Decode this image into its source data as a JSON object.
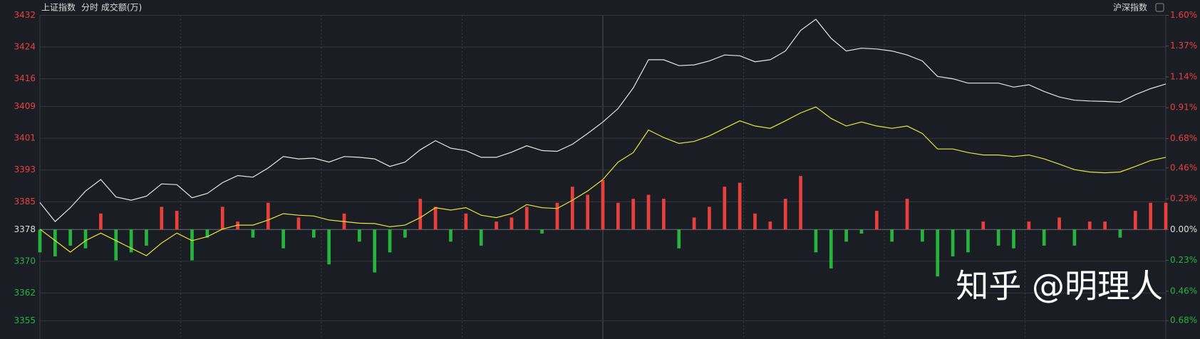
{
  "chart_data": {
    "type": "line",
    "title": "上证指数",
    "subtitle": "分时 成交额(万)",
    "tab_label": "沪深指数",
    "watermark": "知乎 @明理人",
    "grid": true,
    "ylim": [
      3350.4,
      3432
    ],
    "yticks": [
      3432,
      3424,
      3416,
      3409,
      3401,
      3393,
      3385,
      3378,
      3370,
      3362,
      3355
    ],
    "y2lim": [
      -0.817,
      1.6
    ],
    "y2ticks": [
      {
        "value": 1.6,
        "label": "1.60%"
      },
      {
        "value": 1.37,
        "label": "1.37%"
      },
      {
        "value": 1.14,
        "label": "1.14%"
      },
      {
        "value": 0.91,
        "label": "0.91%"
      },
      {
        "value": 0.68,
        "label": "0.68%"
      },
      {
        "value": 0.46,
        "label": "0.46%"
      },
      {
        "value": 0.23,
        "label": "0.23%"
      },
      {
        "value": 0,
        "label": "0.00%"
      },
      {
        "value": -0.23,
        "label": "0.23%"
      },
      {
        "value": -0.46,
        "label": "0.46%"
      },
      {
        "value": -0.68,
        "label": "0.68%"
      }
    ],
    "up_color": "#e8403a",
    "down_color": "#25b53c",
    "series": [
      {
        "type": "line",
        "color": "#e6e6e6",
        "values": [
          3384.8,
          3380.0,
          3383.5,
          3387.7,
          3390.6,
          3386.2,
          3385.4,
          3386.4,
          3389.5,
          3389.3,
          3386.0,
          3387.1,
          3389.8,
          3391.6,
          3391.2,
          3393.5,
          3396.4,
          3395.8,
          3396.0,
          3395.0,
          3396.4,
          3396.2,
          3395.8,
          3393.9,
          3395.0,
          3398.1,
          3400.4,
          3398.5,
          3397.9,
          3396.2,
          3396.2,
          3397.5,
          3399.1,
          3397.9,
          3397.7,
          3399.5,
          3402.2,
          3405.1,
          3408.5,
          3413.7,
          3420.8,
          3420.8,
          3419.3,
          3419.5,
          3420.5,
          3422.0,
          3421.8,
          3420.3,
          3420.8,
          3423.0,
          3428.2,
          3431.0,
          3426.2,
          3423.0,
          3423.7,
          3423.5,
          3423.0,
          3422.0,
          3420.5,
          3416.6,
          3416.0,
          3414.9,
          3414.9,
          3414.9,
          3413.9,
          3414.5,
          3412.8,
          3411.4,
          3410.6,
          3410.4,
          3410.3,
          3410.1,
          3412.0,
          3413.5,
          3414.7
        ]
      },
      {
        "type": "line",
        "color": "#e8e43c",
        "values": [
          3378.1,
          3375.2,
          3372.3,
          3375.2,
          3377.1,
          3375.2,
          3373.3,
          3371.4,
          3374.6,
          3377.1,
          3375.2,
          3376.2,
          3378.1,
          3379.1,
          3379.1,
          3380.4,
          3382.0,
          3381.6,
          3381.4,
          3380.4,
          3380.0,
          3379.6,
          3379.5,
          3378.7,
          3379.1,
          3381.0,
          3383.5,
          3382.9,
          3383.5,
          3381.6,
          3381.0,
          3382.0,
          3384.3,
          3383.5,
          3383.3,
          3385.4,
          3387.7,
          3390.6,
          3395.0,
          3397.4,
          3403.1,
          3401.2,
          3399.7,
          3400.2,
          3401.6,
          3403.5,
          3405.4,
          3404.1,
          3403.5,
          3405.4,
          3407.4,
          3408.9,
          3406.0,
          3404.1,
          3405.1,
          3404.1,
          3403.5,
          3404.1,
          3402.2,
          3398.3,
          3398.3,
          3397.4,
          3396.8,
          3396.8,
          3396.4,
          3396.8,
          3395.8,
          3394.5,
          3393.1,
          3392.5,
          3392.3,
          3392.5,
          3393.9,
          3395.4,
          3396.2
        ]
      },
      {
        "type": "bar",
        "axis": "y2",
        "values": [
          -0.17,
          -0.2,
          -0.12,
          -0.14,
          0.12,
          -0.23,
          -0.17,
          -0.12,
          0.17,
          0.14,
          -0.23,
          -0.06,
          0.17,
          0.06,
          -0.06,
          0.2,
          -0.14,
          0.09,
          -0.06,
          -0.26,
          0.12,
          -0.09,
          -0.32,
          -0.17,
          -0.06,
          0.23,
          0.17,
          -0.09,
          0.12,
          -0.12,
          0.06,
          0.09,
          0.17,
          -0.03,
          0.2,
          0.32,
          0.26,
          0.37,
          0.2,
          0.23,
          0.26,
          0.23,
          -0.14,
          0.09,
          0.17,
          0.32,
          0.35,
          0.12,
          0.06,
          0.23,
          0.4,
          -0.17,
          -0.29,
          -0.09,
          -0.03,
          0.14,
          -0.09,
          0.23,
          -0.09,
          -0.35,
          -0.2,
          -0.17,
          0.06,
          -0.12,
          -0.14,
          0.06,
          -0.12,
          0.09,
          -0.12,
          0.06,
          0.06,
          -0.06,
          0.14,
          0.2,
          0.2
        ]
      }
    ]
  }
}
